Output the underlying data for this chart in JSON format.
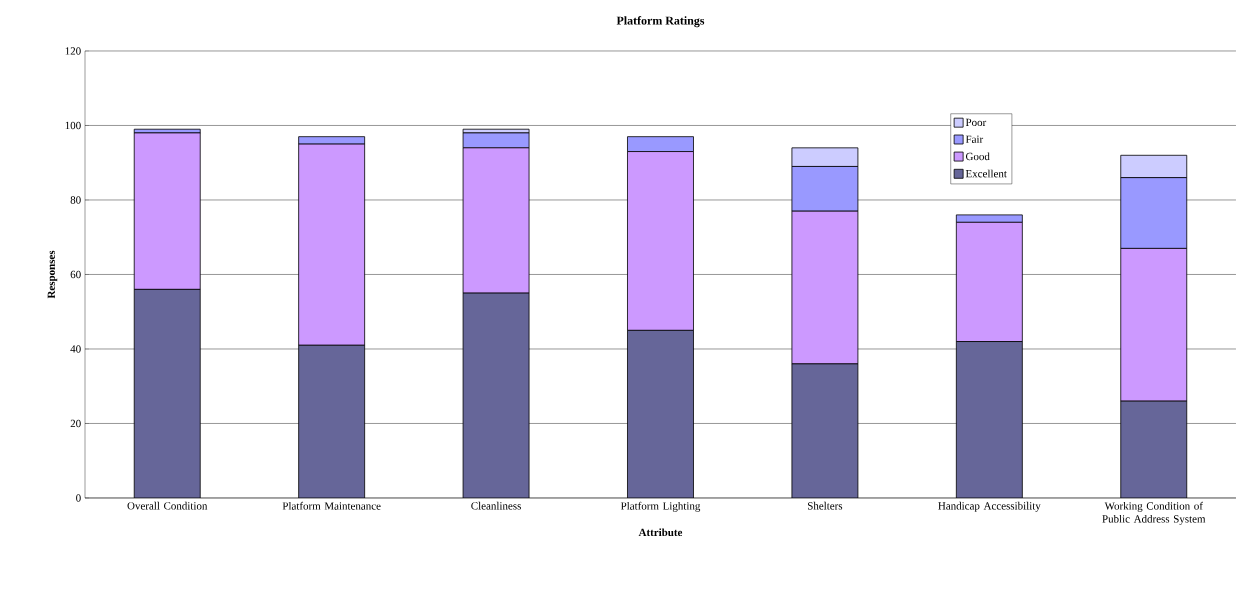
{
  "chart_data": {
    "type": "bar",
    "stacked": true,
    "title": "Platform Ratings",
    "xlabel": "Attribute",
    "ylabel": "Responses",
    "categories": [
      "Overall Condition",
      "Platform Maintenance",
      "Cleanliness",
      "Platform Lighting",
      "Shelters",
      "Handicap Accessibility",
      "Working Condition of Public Address System"
    ],
    "series": [
      {
        "name": "Excellent",
        "color": "#666699",
        "values": [
          56,
          41,
          55,
          45,
          36,
          42,
          26
        ]
      },
      {
        "name": "Good",
        "color": "#cc99ff",
        "values": [
          42,
          54,
          39,
          48,
          41,
          32,
          41
        ]
      },
      {
        "name": "Fair",
        "color": "#9999ff",
        "values": [
          1,
          2,
          4,
          4,
          12,
          2,
          19
        ]
      },
      {
        "name": "Poor",
        "color": "#ccccff",
        "values": [
          0,
          0,
          1,
          0,
          5,
          0,
          6
        ]
      }
    ],
    "ylim": [
      0,
      120
    ],
    "yticks": [
      0,
      20,
      40,
      60,
      80,
      100,
      120
    ],
    "grid": "y",
    "legend": "top right"
  }
}
